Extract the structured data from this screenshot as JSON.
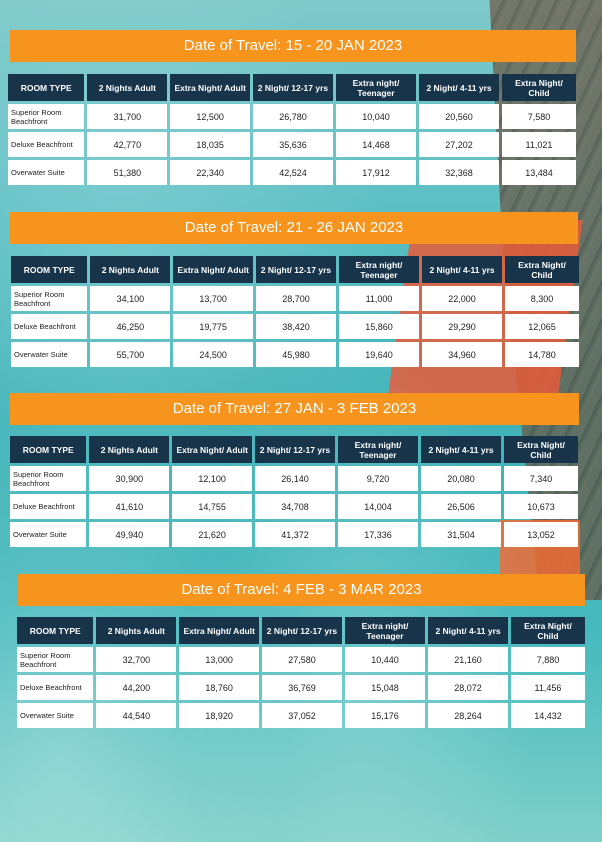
{
  "headers": [
    "ROOM TYPE",
    "2 Nights Adult",
    "Extra Night/ Adult",
    "2 Night/ 12-17 yrs",
    "Extra night/ Teenager",
    "2 Night/ 4-11 yrs",
    "Extra Night/ Child"
  ],
  "sections": [
    {
      "title": "Date of Travel: 15 - 20 JAN 2023",
      "rows": [
        {
          "room": "Superior Room Beachfront",
          "values": [
            "31,700",
            "12,500",
            "26,780",
            "10,040",
            "20,560",
            "7,580"
          ]
        },
        {
          "room": "Deluxe Beachfront",
          "values": [
            "42,770",
            "18,035",
            "35,636",
            "14,468",
            "27,202",
            "11,021"
          ]
        },
        {
          "room": "Overwater Suite",
          "values": [
            "51,380",
            "22,340",
            "42,524",
            "17,912",
            "32,368",
            "13,484"
          ]
        }
      ]
    },
    {
      "title": "Date of Travel:  21 - 26 JAN  2023",
      "rows": [
        {
          "room": "Superior Room Beachfront",
          "values": [
            "34,100",
            "13,700",
            "28,700",
            "11,000",
            "22,000",
            "8,300"
          ]
        },
        {
          "room": "Deluxe Beachfront",
          "values": [
            "46,250",
            "19,775",
            "38,420",
            "15,860",
            "29,290",
            "12,065"
          ]
        },
        {
          "room": "Overwater Suite",
          "values": [
            "55,700",
            "24,500",
            "45,980",
            "19,640",
            "34,960",
            "14,780"
          ]
        }
      ]
    },
    {
      "title": "Date of Travel: 27 JAN - 3 FEB 2023",
      "rows": [
        {
          "room": "Superior Room Beachfront",
          "values": [
            "30,900",
            "12,100",
            "26,140",
            "9,720",
            "20,080",
            "7,340"
          ]
        },
        {
          "room": "Deluxe Beachfront",
          "values": [
            "41,610",
            "14,755",
            "34,708",
            "14,004",
            "26,506",
            "10,673"
          ]
        },
        {
          "room": "Overwater Suite",
          "values": [
            "49,940",
            "21,620",
            "41,372",
            "17,336",
            "31,504",
            "13,052"
          ]
        }
      ]
    },
    {
      "title": "Date of Travel: 4 FEB - 3 MAR  2023",
      "rows": [
        {
          "room": "Superior Room Beachfront",
          "values": [
            "32,700",
            "13,000",
            "27,580",
            "10,440",
            "21,160",
            "7,880"
          ]
        },
        {
          "room": "Deluxe Beachfront",
          "values": [
            "44,200",
            "18,760",
            "36,769",
            "15,048",
            "28,072",
            "11,456"
          ]
        },
        {
          "room": "Overwater Suite",
          "values": [
            "44,540",
            "18,920",
            "37,052",
            "15,176",
            "28,264",
            "14,432"
          ]
        }
      ]
    }
  ]
}
